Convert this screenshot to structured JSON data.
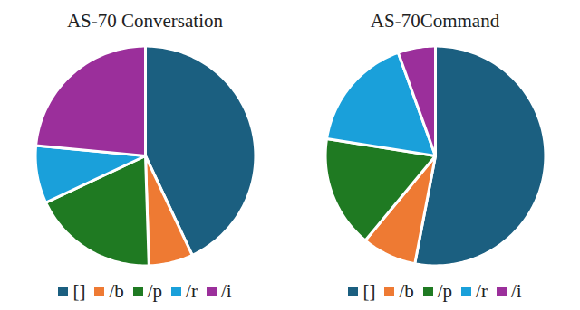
{
  "chart_data": [
    {
      "type": "pie",
      "title": "AS-70 Conversation",
      "categories": [
        "[]",
        "/b",
        "/p",
        "/r",
        "/i"
      ],
      "values": [
        43,
        6.5,
        18.5,
        8.5,
        23.5
      ],
      "colors": [
        "#1b5f80",
        "#ee7a33",
        "#1f7a22",
        "#1aa0da",
        "#9b2f9b"
      ],
      "legend": "bottom"
    },
    {
      "type": "pie",
      "title": "AS-70Command",
      "categories": [
        "[]",
        "/b",
        "/p",
        "/r",
        "/i"
      ],
      "values": [
        53,
        8,
        16.5,
        17,
        5.5
      ],
      "colors": [
        "#1b5f80",
        "#ee7a33",
        "#1f7a22",
        "#1aa0da",
        "#9b2f9b"
      ],
      "legend": "bottom"
    }
  ]
}
